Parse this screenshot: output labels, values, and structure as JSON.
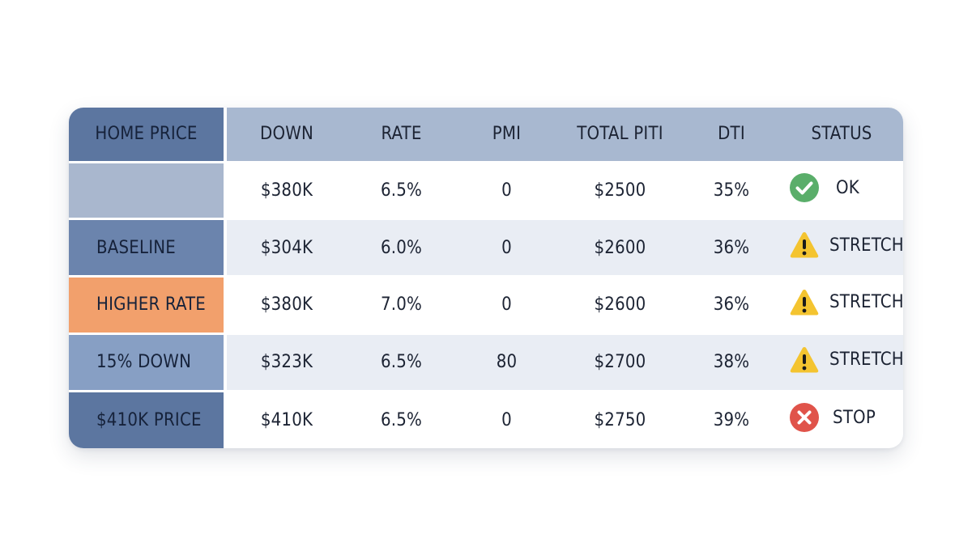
{
  "colors": {
    "header_bg": "#a8b8d0",
    "header_label_bg": "#5c76a0",
    "ok": "#5aae6a",
    "stretch": "#f4c430",
    "stop": "#e0534a"
  },
  "table": {
    "headers": [
      "HOME PRICE",
      "DOWN",
      "RATE",
      "PMI",
      "TOTAL PITI",
      "DTI",
      "STATUS"
    ],
    "rows": [
      {
        "label": "",
        "label_color": "#a9b7ce",
        "down": "$380K",
        "rate": "6.5%",
        "pmi": "0",
        "piti": "$2500",
        "dti": "35%",
        "status": "OK",
        "status_icon": "check-circle-icon"
      },
      {
        "label": "BASELINE",
        "label_color": "#6b84ad",
        "down": "$304K",
        "rate": "6.0%",
        "pmi": "0",
        "piti": "$2600",
        "dti": "36%",
        "status": "STRETCH",
        "status_icon": "warning-triangle-icon"
      },
      {
        "label": "HIGHER RATE",
        "label_color": "#f2a06c",
        "down": "$380K",
        "rate": "7.0%",
        "pmi": "0",
        "piti": "$2600",
        "dti": "36%",
        "status": "STRETCH",
        "status_icon": "warning-triangle-icon"
      },
      {
        "label": "15% DOWN",
        "label_color": "#879fc4",
        "down": "$323K",
        "rate": "6.5%",
        "pmi": "80",
        "piti": "$2700",
        "dti": "38%",
        "status": "STRETCH",
        "status_icon": "warning-triangle-icon"
      },
      {
        "label": "$410K PRICE",
        "label_color": "#5c76a0",
        "down": "$410K",
        "rate": "6.5%",
        "pmi": "0",
        "piti": "$2750",
        "dti": "39%",
        "status": "STOP",
        "status_icon": "x-circle-icon"
      }
    ]
  }
}
